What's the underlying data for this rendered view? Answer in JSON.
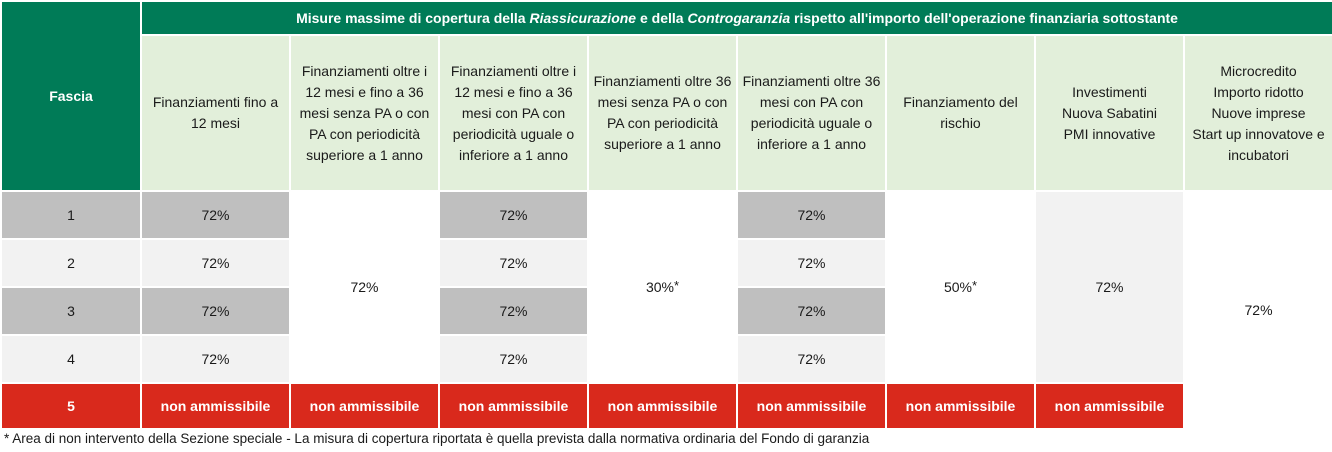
{
  "header": {
    "fascia_label": "Fascia",
    "title_part1": "Misure massime di copertura della ",
    "title_em1": "Riassicurazione",
    "title_part2": "  e della ",
    "title_em2": "Controgaranzia",
    "title_part3": "  rispetto all'importo dell'operazione finanziaria sottostante"
  },
  "columns": [
    {
      "lines": [
        "Finanziamenti fino a",
        "12 mesi"
      ]
    },
    {
      "lines": [
        "Finanziamenti oltre i",
        "12 mesi e fino a 36",
        "mesi senza PA o con",
        "PA con periodicità",
        "superiore a 1 anno"
      ]
    },
    {
      "lines": [
        "Finanziamenti oltre i",
        "12 mesi e fino a 36",
        "mesi con PA con",
        "periodicità uguale o",
        "inferiore a 1 anno"
      ]
    },
    {
      "lines": [
        "Finanziamenti oltre 36",
        "mesi senza PA o con",
        "PA con periodicità",
        "superiore a 1 anno"
      ]
    },
    {
      "lines": [
        "Finanziamenti oltre 36",
        "mesi con PA con",
        "periodicità uguale o",
        "inferiore a 1 anno"
      ]
    },
    {
      "lines": [
        "Finanziamento del",
        "rischio"
      ]
    },
    {
      "lines": [
        "Investimenti",
        "Nuova Sabatini",
        "PMI innovative"
      ]
    },
    {
      "lines": [
        "Microcredito",
        "Importo ridotto",
        "Nuove imprese",
        "Start up innovatove e",
        "incubatori"
      ]
    }
  ],
  "rows": {
    "fascia": [
      "1",
      "2",
      "3",
      "4",
      "5"
    ],
    "col1": [
      "72%",
      "72%",
      "72%",
      "72%"
    ],
    "col2_merged": "72%",
    "col3": [
      "72%",
      "72%",
      "72%",
      "72%"
    ],
    "col4_merged": "30%",
    "col5": [
      "72%",
      "72%",
      "72%",
      "72%"
    ],
    "col6_merged": "50%",
    "col7_merged": "72%",
    "col8_merged": "72%",
    "star": "*",
    "not_admissible": "non ammissibile"
  },
  "footnote": "* Area di non intervento della Sezione speciale - La misura di copertura riportata è quella prevista dalla normativa ordinaria del Fondo di garanzia",
  "colors": {
    "header_green": "#007b57",
    "light_green": "#e2efda",
    "grey_dark": "#bfbfbf",
    "grey_light": "#f2f2f2",
    "red": "#d9291c"
  }
}
